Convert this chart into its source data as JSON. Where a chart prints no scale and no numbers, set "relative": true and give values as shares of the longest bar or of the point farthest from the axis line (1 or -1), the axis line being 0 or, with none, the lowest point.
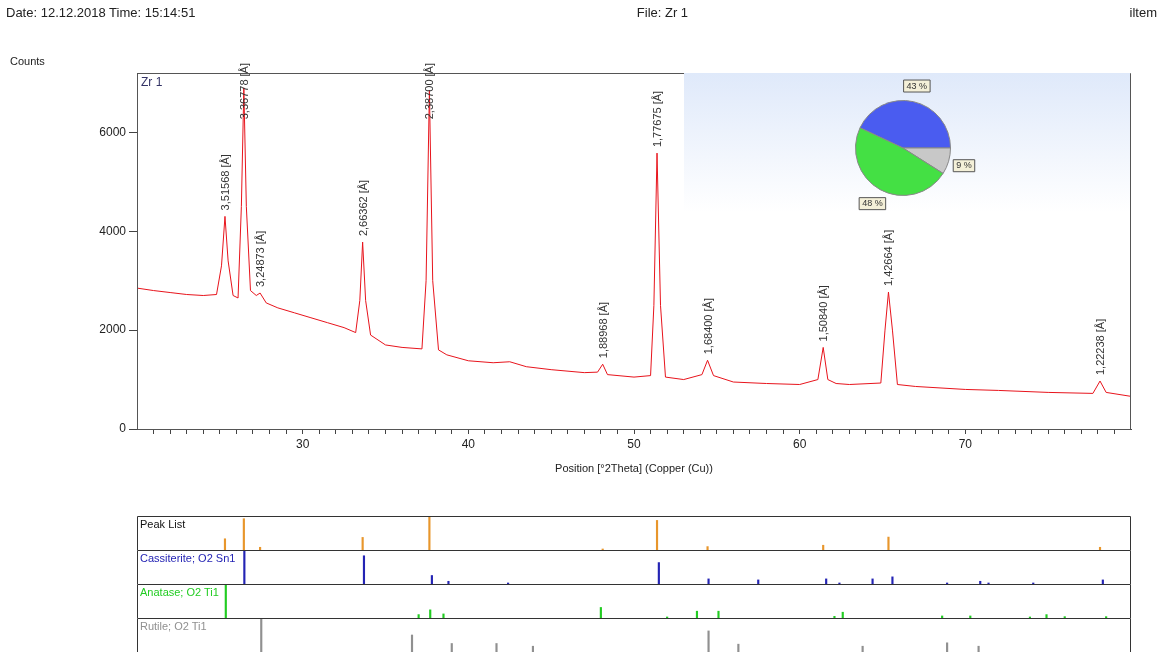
{
  "chart_data": [
    {
      "type": "line",
      "title": "Zr 1",
      "xlabel": "Position [°2Theta] (Copper (Cu))",
      "ylabel": "Counts",
      "marker": "none",
      "grid": false,
      "x": [
        20,
        21,
        22,
        23,
        24,
        24.8,
        25.1,
        25.31,
        25.5,
        25.8,
        26.1,
        26.3,
        26.45,
        26.6,
        26.85,
        27.2,
        27.43,
        27.8,
        28.5,
        29.5,
        30.5,
        31.5,
        32.5,
        33.2,
        33.45,
        33.62,
        33.8,
        34.1,
        35,
        36,
        37.2,
        37.45,
        37.65,
        37.85,
        38.2,
        38.7,
        40,
        41.5,
        42.5,
        43.5,
        45,
        47,
        47.8,
        48.11,
        48.4,
        50,
        51,
        51.2,
        51.39,
        51.6,
        51.9,
        53,
        54.1,
        54.44,
        54.8,
        56,
        58,
        60,
        61.1,
        61.42,
        61.7,
        62.2,
        63,
        64.9,
        65.15,
        65.36,
        65.6,
        65.9,
        67,
        70,
        72,
        75,
        77.7,
        78.13,
        78.5,
        80
      ],
      "series": [
        {
          "color": "#e8141c",
          "values": [
            2850,
            2800,
            2760,
            2720,
            2700,
            2720,
            3300,
            4300,
            3400,
            2700,
            2650,
            4500,
            6900,
            4500,
            2800,
            2700,
            2750,
            2550,
            2450,
            2350,
            2250,
            2150,
            2050,
            1950,
            2600,
            3780,
            2600,
            1900,
            1700,
            1650,
            1620,
            3000,
            6850,
            3000,
            1600,
            1500,
            1380,
            1340,
            1360,
            1260,
            1200,
            1140,
            1150,
            1310,
            1100,
            1050,
            1080,
            2500,
            5580,
            2500,
            1050,
            1000,
            1100,
            1390,
            1080,
            950,
            920,
            900,
            1000,
            1650,
            1000,
            920,
            900,
            930,
            2000,
            2770,
            2000,
            900,
            860,
            800,
            780,
            740,
            720,
            970,
            740,
            660
          ]
        }
      ],
      "xlim": [
        20,
        80
      ],
      "ylim": [
        0,
        7200
      ],
      "xticks": [
        {
          "value": 21,
          "label": null
        },
        {
          "value": 22,
          "label": null
        },
        {
          "value": 23,
          "label": null
        },
        {
          "value": 24,
          "label": null
        },
        {
          "value": 25,
          "label": null
        },
        {
          "value": 26,
          "label": null
        },
        {
          "value": 27,
          "label": null
        },
        {
          "value": 28,
          "label": null
        },
        {
          "value": 29,
          "label": null
        },
        30,
        {
          "value": 31,
          "label": null
        },
        {
          "value": 32,
          "label": null
        },
        {
          "value": 33,
          "label": null
        },
        {
          "value": 34,
          "label": null
        },
        {
          "value": 35,
          "label": null
        },
        {
          "value": 36,
          "label": null
        },
        {
          "value": 37,
          "label": null
        },
        {
          "value": 38,
          "label": null
        },
        {
          "value": 39,
          "label": null
        },
        40,
        {
          "value": 41,
          "label": null
        },
        {
          "value": 42,
          "label": null
        },
        {
          "value": 43,
          "label": null
        },
        {
          "value": 44,
          "label": null
        },
        {
          "value": 45,
          "label": null
        },
        {
          "value": 46,
          "label": null
        },
        {
          "value": 47,
          "label": null
        },
        {
          "value": 48,
          "label": null
        },
        {
          "value": 49,
          "label": null
        },
        50,
        {
          "value": 51,
          "label": null
        },
        {
          "value": 52,
          "label": null
        },
        {
          "value": 53,
          "label": null
        },
        {
          "value": 54,
          "label": null
        },
        {
          "value": 55,
          "label": null
        },
        {
          "value": 56,
          "label": null
        },
        {
          "value": 57,
          "label": null
        },
        {
          "value": 58,
          "label": null
        },
        {
          "value": 59,
          "label": null
        },
        60,
        {
          "value": 61,
          "label": null
        },
        {
          "value": 62,
          "label": null
        },
        {
          "value": 63,
          "label": null
        },
        {
          "value": 64,
          "label": null
        },
        {
          "value": 65,
          "label": null
        },
        {
          "value": 66,
          "label": null
        },
        {
          "value": 67,
          "label": null
        },
        {
          "value": 68,
          "label": null
        },
        {
          "value": 69,
          "label": null
        },
        70,
        {
          "value": 71,
          "label": null
        },
        {
          "value": 72,
          "label": null
        },
        {
          "value": 73,
          "label": null
        },
        {
          "value": 74,
          "label": null
        },
        {
          "value": 75,
          "label": null
        },
        {
          "value": 76,
          "label": null
        },
        {
          "value": 77,
          "label": null
        },
        {
          "value": 78,
          "label": null
        },
        {
          "value": 79,
          "label": null
        }
      ],
      "yticks": [
        0,
        2000,
        4000,
        6000
      ],
      "annotations": [
        "Date: 12.12.2018 Time: 15:14:51",
        "File: Zr 1",
        "iltem",
        {
          "text": "3,51568 [Å]",
          "x": 25.31,
          "y": 4300
        },
        {
          "text": "3,36778 [Å]",
          "x": 26.45,
          "y": 6900
        },
        {
          "text": "3,24873 [Å]",
          "x": 27.43,
          "y": 2750
        },
        {
          "text": "2,66362 [Å]",
          "x": 33.62,
          "y": 3780
        },
        {
          "text": "2,38700 [Å]",
          "x": 37.65,
          "y": 6850
        },
        {
          "text": "1,88968 [Å]",
          "x": 48.11,
          "y": 1310
        },
        {
          "text": "1,77675 [Å]",
          "x": 51.39,
          "y": 5580
        },
        {
          "text": "1,68400 [Å]",
          "x": 54.44,
          "y": 1390
        },
        {
          "text": "1,50840 [Å]",
          "x": 61.42,
          "y": 1650
        },
        {
          "text": "1,42664 [Å]",
          "x": 65.36,
          "y": 2770
        },
        {
          "text": "1,22238 [Å]",
          "x": 78.13,
          "y": 970
        }
      ]
    },
    {
      "type": "pie",
      "categories": [
        null,
        null,
        null
      ],
      "values": [
        43,
        9,
        48
      ],
      "colors": [
        "#4a5cf0",
        "#c8c8c8",
        "#44e044"
      ],
      "value_labels": [
        "43 %",
        "9 %",
        "48 %"
      ]
    },
    {
      "type": "bar",
      "title": "Peak List",
      "relative": true,
      "tick_labels": false,
      "xlim": [
        20,
        80
      ],
      "x": [
        25.31,
        26.45,
        27.43,
        33.62,
        37.65,
        48.11,
        51.39,
        54.44,
        61.42,
        65.36,
        78.13
      ],
      "series": [
        {
          "color": "#e8962c",
          "values": [
            0.33,
            0.92,
            0.08,
            0.37,
            1,
            0.03,
            0.87,
            0.1,
            0.14,
            0.38,
            0.08
          ]
        }
      ]
    },
    {
      "type": "bar",
      "relative": true,
      "tick_labels": false,
      "xlim": [
        20,
        80
      ],
      "x": [
        26.48,
        33.7,
        37.8,
        38.8,
        42.4,
        51.5,
        54.5,
        57.5,
        61.6,
        62.4,
        64.4,
        65.6,
        68.9,
        70.9,
        71.4,
        74.1,
        78.3
      ],
      "series": [
        {
          "name": "Cassiterite; O2 Sn1",
          "color": "#2424b4",
          "values": [
            1,
            0.83,
            0.25,
            0.08,
            0.03,
            0.63,
            0.15,
            0.12,
            0.15,
            0.03,
            0.15,
            0.21,
            0.03,
            0.08,
            0.03,
            0.03,
            0.12
          ]
        }
      ]
    },
    {
      "type": "bar",
      "relative": true,
      "tick_labels": false,
      "xlim": [
        20,
        80
      ],
      "x": [
        25.36,
        37,
        37.7,
        38.5,
        48,
        52,
        53.8,
        55.1,
        62.1,
        62.6,
        68.6,
        70.3,
        73.9,
        74.9,
        76,
        78.5
      ],
      "series": [
        {
          "name": "Anatase; O2 Ti1",
          "color": "#22cc22",
          "values": [
            1,
            0.1,
            0.24,
            0.12,
            0.31,
            0.03,
            0.2,
            0.2,
            0.05,
            0.17,
            0.06,
            0.06,
            0.03,
            0.1,
            0.04,
            0.04
          ]
        }
      ]
    },
    {
      "type": "bar",
      "relative": true,
      "tick_labels": false,
      "xlim": [
        20,
        80
      ],
      "x": [
        27.5,
        36.6,
        39,
        41.7,
        43.9,
        54.5,
        56.3,
        63.8,
        68.9,
        70.8
      ],
      "series": [
        {
          "name": "Rutile; O2 Ti1",
          "color": "#909090",
          "values": [
            1,
            0.5,
            0.25,
            0.25,
            0.17,
            0.62,
            0.23,
            0.17,
            0.27,
            0.17
          ]
        }
      ]
    }
  ]
}
